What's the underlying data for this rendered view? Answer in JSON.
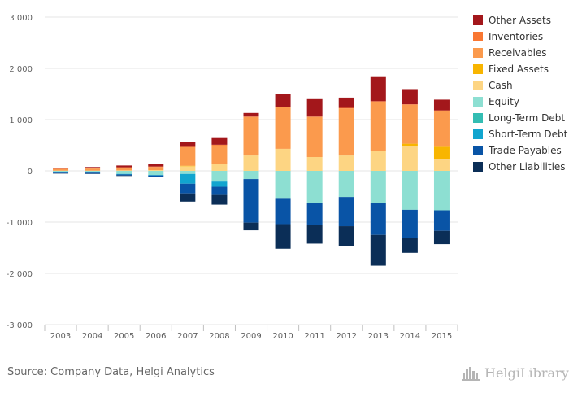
{
  "chart_data": {
    "type": "bar",
    "stacked": true,
    "categories": [
      "2003",
      "2004",
      "2005",
      "2006",
      "2007",
      "2008",
      "2009",
      "2010",
      "2011",
      "2012",
      "2013",
      "2014",
      "2015"
    ],
    "ylim": [
      -3000,
      3000
    ],
    "yticks": [
      -3000,
      -2000,
      -1000,
      0,
      1000,
      2000,
      3000
    ],
    "ytick_labels": [
      "-3 000",
      "-2 000",
      "-1 000",
      "0",
      "1 000",
      "2 000",
      "3 000"
    ],
    "grid": true,
    "legend_position": "right",
    "positive_series": [
      {
        "name": "Cash",
        "color": "#fdd583",
        "values": [
          5,
          5,
          10,
          15,
          90,
          130,
          300,
          430,
          270,
          300,
          390,
          480,
          230
        ]
      },
      {
        "name": "Fixed Assets",
        "color": "#f8b500",
        "values": [
          0,
          0,
          0,
          0,
          10,
          0,
          0,
          0,
          0,
          0,
          0,
          50,
          240
        ]
      },
      {
        "name": "Receivables",
        "color": "#fb9a4d",
        "values": [
          30,
          40,
          50,
          60,
          360,
          370,
          750,
          810,
          780,
          920,
          960,
          760,
          700
        ]
      },
      {
        "name": "Inventories",
        "color": "#f97732",
        "values": [
          10,
          10,
          10,
          10,
          10,
          10,
          10,
          10,
          10,
          10,
          10,
          10,
          10
        ]
      },
      {
        "name": "Other Assets",
        "color": "#a3171b",
        "values": [
          15,
          20,
          35,
          50,
          100,
          130,
          70,
          250,
          340,
          200,
          470,
          280,
          210
        ]
      }
    ],
    "negative_series": [
      {
        "name": "Equity",
        "color": "#8ddfd2",
        "values": [
          -20,
          -20,
          -60,
          -80,
          -60,
          -200,
          -160,
          -530,
          -630,
          -510,
          -630,
          -760,
          -770
        ]
      },
      {
        "name": "Long-Term Debt",
        "color": "#33bdb3",
        "values": [
          0,
          0,
          0,
          0,
          0,
          -10,
          0,
          0,
          0,
          0,
          0,
          0,
          0
        ]
      },
      {
        "name": "Short-Term Debt",
        "color": "#11a5cf",
        "values": [
          -15,
          -15,
          -10,
          -10,
          -190,
          -100,
          0,
          0,
          0,
          0,
          0,
          0,
          0
        ]
      },
      {
        "name": "Trade Payables",
        "color": "#0954a6",
        "values": [
          -15,
          -20,
          -20,
          -25,
          -190,
          -160,
          -850,
          -510,
          -430,
          -570,
          -620,
          -550,
          -400
        ]
      },
      {
        "name": "Other Liabilities",
        "color": "#0b2e57",
        "values": [
          -5,
          -5,
          -10,
          -10,
          -160,
          -190,
          -150,
          -480,
          -360,
          -390,
          -600,
          -290,
          -260
        ]
      }
    ],
    "legend": [
      {
        "name": "Other Assets",
        "color": "#a3171b"
      },
      {
        "name": "Inventories",
        "color": "#f97732"
      },
      {
        "name": "Receivables",
        "color": "#fb9a4d"
      },
      {
        "name": "Fixed Assets",
        "color": "#f8b500"
      },
      {
        "name": "Cash",
        "color": "#fdd583"
      },
      {
        "name": "Equity",
        "color": "#8ddfd2"
      },
      {
        "name": "Long-Term Debt",
        "color": "#33bdb3"
      },
      {
        "name": "Short-Term Debt",
        "color": "#11a5cf"
      },
      {
        "name": "Trade Payables",
        "color": "#0954a6"
      },
      {
        "name": "Other Liabilities",
        "color": "#0b2e57"
      }
    ]
  },
  "source": "Source: Company Data, Helgi Analytics",
  "brand": {
    "name": "HelgiLibrary",
    "icon": "city-skyline-icon"
  }
}
